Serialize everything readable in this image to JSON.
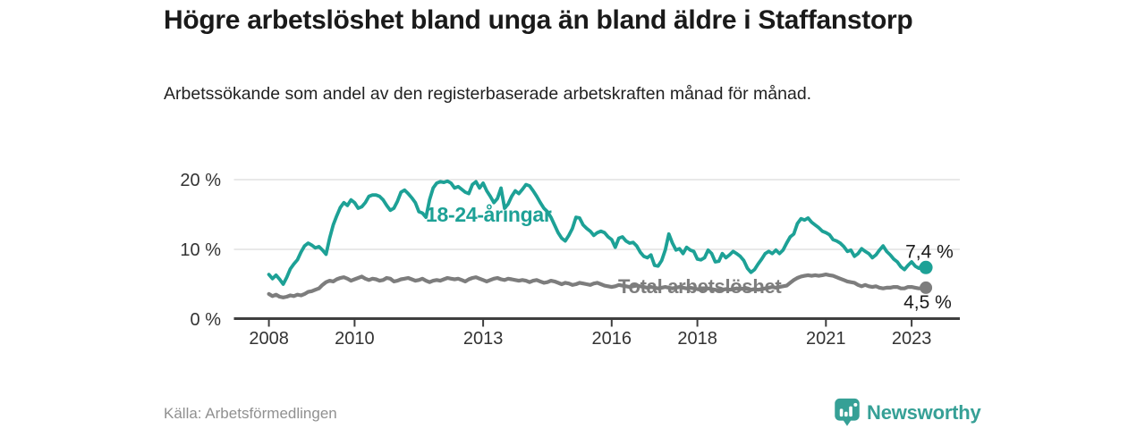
{
  "chart_data": {
    "type": "line",
    "title": "Högre arbetslöshet bland unga än bland äldre i Staffanstorp",
    "subtitle": "Arbetssökande som andel av den registerbaserade arbetskraften månad för månad.",
    "source": "Källa: Arbetsförmedlingen",
    "unit": "%",
    "frequency": "monthly",
    "start": "2008-01",
    "end": "2023-05",
    "ylim": [
      0,
      21
    ],
    "grid": "horizontal-only",
    "legend": "inline-labels",
    "y_ticks": [
      {
        "value": 0,
        "label": "0 %"
      },
      {
        "value": 10,
        "label": "10 %"
      },
      {
        "value": 20,
        "label": "20 %"
      }
    ],
    "x_ticks": [
      {
        "year": 2008,
        "label": "2008"
      },
      {
        "year": 2010,
        "label": "2010"
      },
      {
        "year": 2013,
        "label": "2013"
      },
      {
        "year": 2016,
        "label": "2016"
      },
      {
        "year": 2018,
        "label": "2018"
      },
      {
        "year": 2021,
        "label": "2021"
      },
      {
        "year": 2023,
        "label": "2023"
      }
    ],
    "series": [
      {
        "key": "youth",
        "name": "18-24-åringar",
        "color": "#1da196",
        "end_label": "7,4 %",
        "end_value": 7.4,
        "values": [
          6.4,
          5.8,
          6.3,
          5.7,
          5.0,
          6.0,
          7.2,
          7.9,
          8.5,
          9.6,
          10.5,
          10.9,
          10.6,
          10.2,
          10.4,
          9.9,
          9.3,
          11.6,
          13.5,
          14.8,
          16.0,
          16.7,
          16.3,
          17.1,
          16.7,
          15.9,
          16.1,
          16.7,
          17.6,
          17.8,
          17.8,
          17.6,
          17.1,
          16.3,
          15.6,
          15.9,
          16.9,
          18.2,
          18.5,
          18.0,
          17.4,
          16.7,
          15.4,
          15.2,
          14.6,
          17.1,
          18.8,
          19.5,
          19.7,
          19.6,
          19.8,
          19.5,
          18.8,
          19.0,
          18.6,
          18.2,
          18.0,
          19.3,
          19.7,
          18.8,
          19.5,
          18.4,
          17.6,
          16.7,
          17.3,
          18.8,
          15.9,
          16.5,
          17.6,
          18.4,
          18.0,
          18.6,
          19.3,
          19.1,
          18.4,
          17.6,
          16.7,
          15.9,
          15.4,
          14.6,
          13.5,
          12.4,
          11.6,
          11.2,
          12.0,
          13.0,
          14.6,
          14.5,
          13.5,
          13.0,
          12.6,
          12.0,
          12.4,
          12.6,
          12.4,
          11.8,
          11.4,
          10.3,
          11.6,
          11.8,
          11.2,
          10.9,
          11.0,
          10.5,
          9.6,
          9.0,
          8.8,
          9.2,
          7.7,
          7.6,
          8.4,
          9.9,
          12.2,
          10.9,
          9.9,
          10.1,
          9.4,
          10.3,
          9.9,
          9.7,
          8.6,
          8.5,
          8.8,
          9.9,
          9.4,
          8.2,
          8.3,
          9.4,
          8.8,
          9.2,
          9.7,
          9.4,
          9.0,
          8.4,
          7.3,
          6.7,
          7.1,
          7.9,
          8.6,
          9.4,
          9.7,
          9.4,
          9.9,
          9.4,
          9.9,
          10.9,
          11.8,
          12.2,
          13.7,
          14.4,
          14.2,
          14.5,
          13.9,
          13.5,
          13.1,
          12.6,
          12.4,
          12.1,
          11.4,
          11.2,
          10.9,
          10.4,
          9.7,
          9.9,
          9.0,
          9.4,
          10.1,
          9.7,
          9.4,
          8.8,
          9.2,
          9.9,
          10.5,
          9.7,
          9.2,
          8.6,
          8.2,
          7.5,
          7.1,
          7.7,
          8.2,
          7.6,
          7.3,
          7.7,
          7.4
        ]
      },
      {
        "key": "total",
        "name": "Total arbetslöshet",
        "color": "#7d7d7d",
        "end_label": "4,5 %",
        "end_value": 4.5,
        "values": [
          3.6,
          3.3,
          3.5,
          3.2,
          3.1,
          3.2,
          3.4,
          3.3,
          3.5,
          3.4,
          3.6,
          3.9,
          4.0,
          4.2,
          4.4,
          4.9,
          5.3,
          5.5,
          5.4,
          5.7,
          5.9,
          6.0,
          5.8,
          5.5,
          5.7,
          5.9,
          6.1,
          5.8,
          5.6,
          5.8,
          5.7,
          5.5,
          5.6,
          5.9,
          5.8,
          5.4,
          5.5,
          5.7,
          5.8,
          5.9,
          5.7,
          5.5,
          5.6,
          5.8,
          5.5,
          5.3,
          5.5,
          5.6,
          5.5,
          5.7,
          5.9,
          5.8,
          5.7,
          5.8,
          5.6,
          5.4,
          5.7,
          5.9,
          6.0,
          5.8,
          5.6,
          5.4,
          5.6,
          5.8,
          5.9,
          5.7,
          5.6,
          5.8,
          5.7,
          5.6,
          5.5,
          5.6,
          5.5,
          5.3,
          5.5,
          5.6,
          5.4,
          5.2,
          5.3,
          5.5,
          5.4,
          5.2,
          5.0,
          5.2,
          5.1,
          4.9,
          5.0,
          5.2,
          5.1,
          5.0,
          4.9,
          5.1,
          5.2,
          5.0,
          4.8,
          4.7,
          4.6,
          4.7,
          4.9,
          4.8,
          4.7,
          4.6,
          4.7,
          4.8,
          4.7,
          4.6,
          4.5,
          4.6,
          4.5,
          4.4,
          4.5,
          4.6,
          4.5,
          4.4,
          4.5,
          4.6,
          4.5,
          4.4,
          4.5,
          4.4,
          4.3,
          4.2,
          4.3,
          4.4,
          4.3,
          4.2,
          4.1,
          4.2,
          4.3,
          4.2,
          4.3,
          4.4,
          4.3,
          4.4,
          4.3,
          4.2,
          4.3,
          4.2,
          4.3,
          4.4,
          4.5,
          4.6,
          4.5,
          4.6,
          4.7,
          4.8,
          5.2,
          5.6,
          5.9,
          6.1,
          6.2,
          6.3,
          6.2,
          6.3,
          6.2,
          6.3,
          6.4,
          6.3,
          6.2,
          6.0,
          5.8,
          5.6,
          5.4,
          5.3,
          5.2,
          4.9,
          4.7,
          4.9,
          4.7,
          4.6,
          4.7,
          4.5,
          4.4,
          4.5,
          4.5,
          4.6,
          4.6,
          4.4,
          4.4,
          4.6,
          4.6,
          4.5,
          4.4,
          4.4,
          4.5
        ]
      }
    ]
  },
  "branding": {
    "wordmark": "Newsworthy"
  },
  "colors": {
    "accent_teal": "#1da196",
    "line_gray": "#7d7d7d",
    "brand_teal": "#36a096",
    "text_dark": "#1a1a1a",
    "text_muted": "#909090",
    "grid": "#dcdcdc",
    "axis": "#3f3f3f",
    "tick_label": "#333333"
  }
}
